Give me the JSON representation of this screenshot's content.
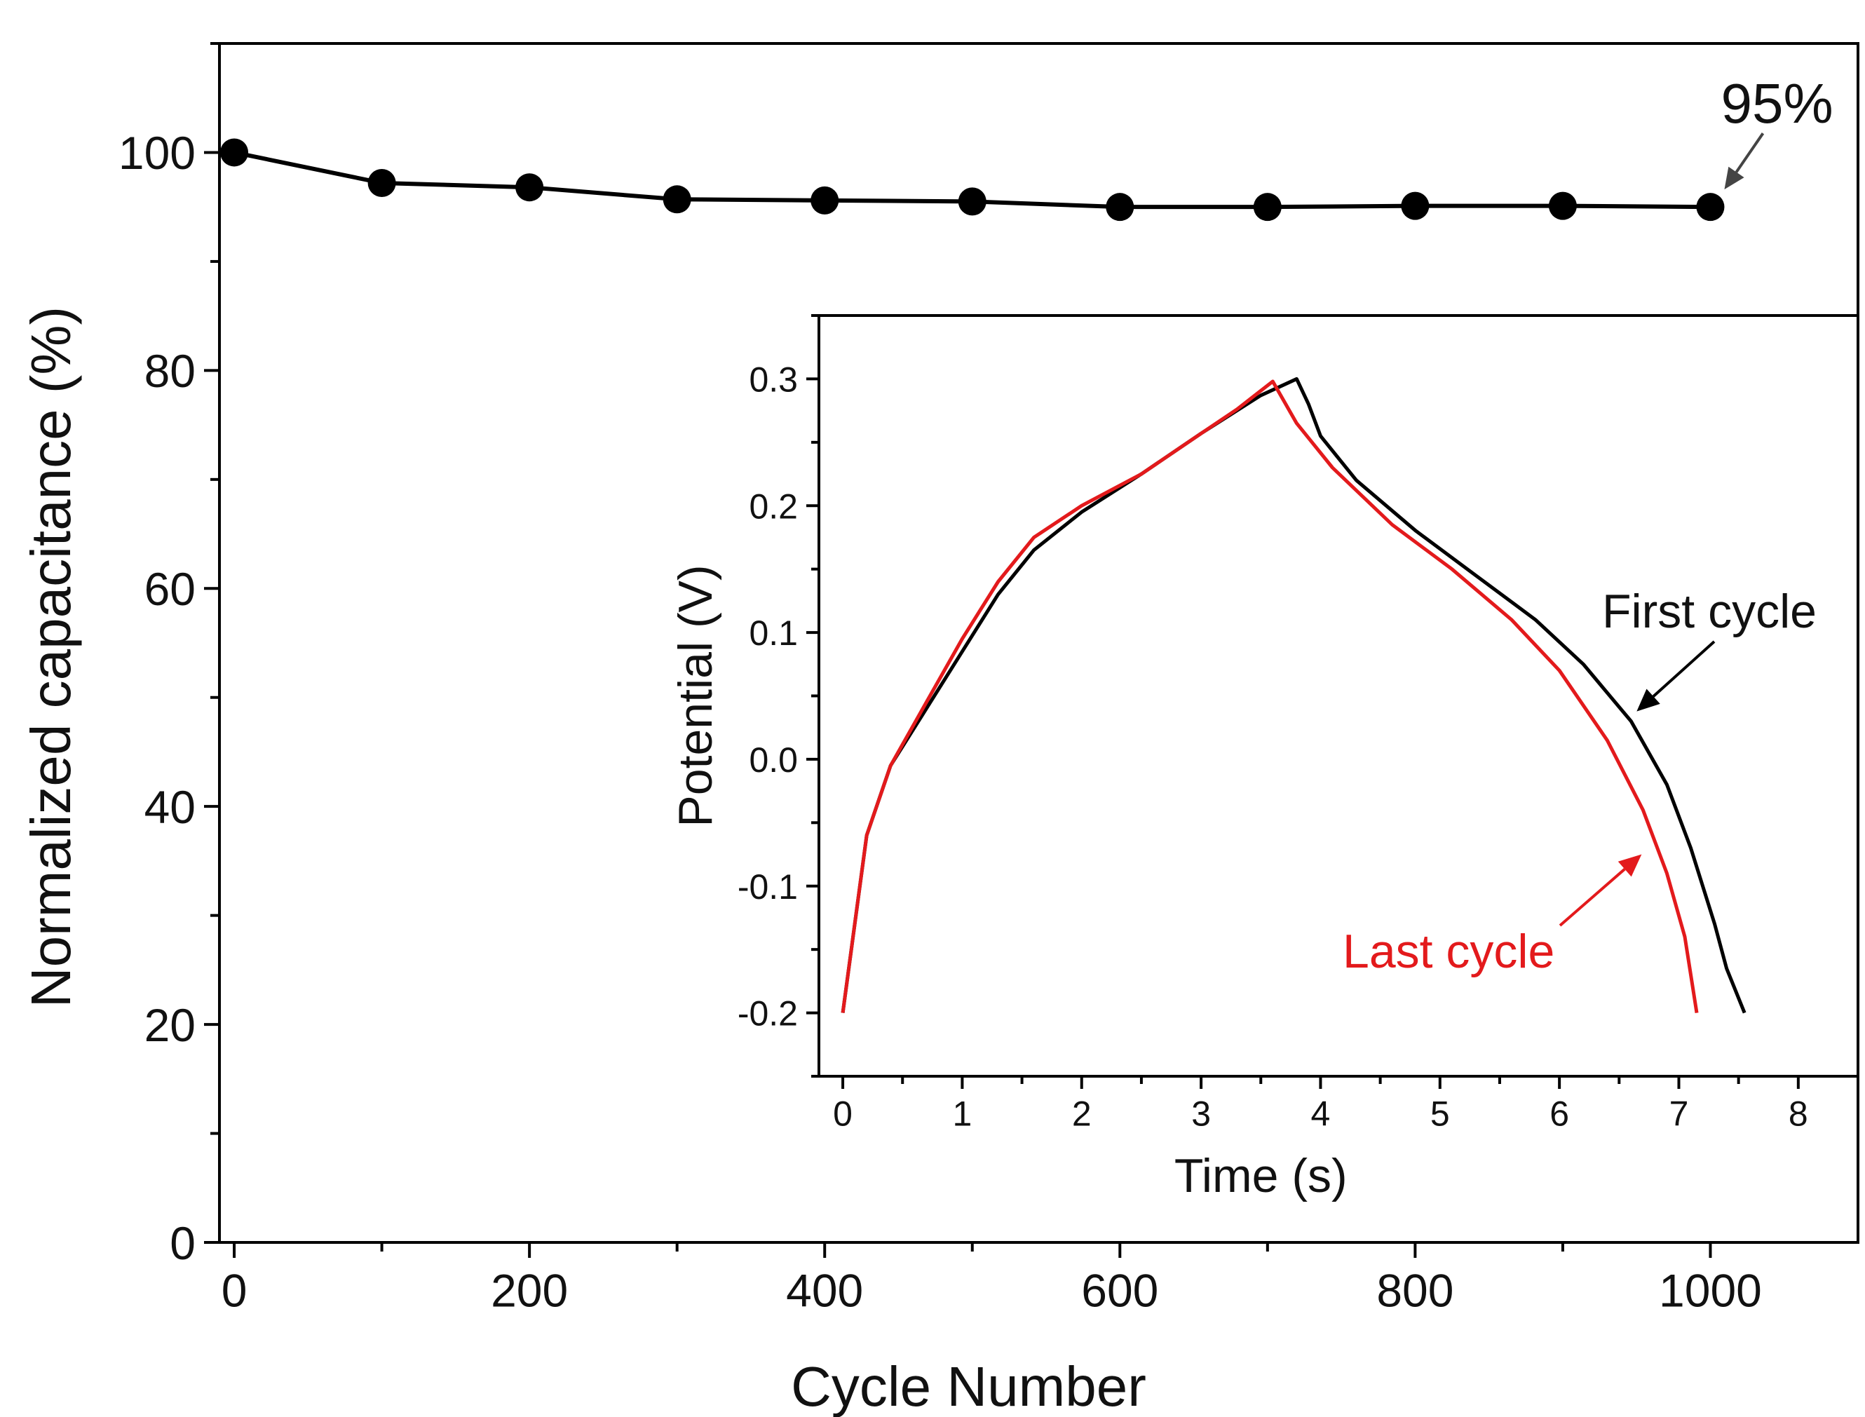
{
  "chart_data": [
    {
      "type": "line",
      "role": "main",
      "xlabel": "Cycle Number",
      "ylabel": "Normalized capacitance (%)",
      "xlim": [
        -10,
        1100
      ],
      "ylim": [
        0,
        110
      ],
      "x_ticks": [
        0,
        200,
        400,
        600,
        800,
        1000
      ],
      "x_tick_labels": [
        "0",
        "200",
        "400",
        "600",
        "800",
        "1000"
      ],
      "y_ticks": [
        0,
        20,
        40,
        60,
        80,
        100
      ],
      "y_tick_labels": [
        "0",
        "20",
        "40",
        "60",
        "80",
        "100"
      ],
      "series": [
        {
          "color": "#000000",
          "marker": "circle",
          "x": [
            0,
            100,
            200,
            300,
            400,
            500,
            600,
            700,
            800,
            900,
            1000
          ],
          "y": [
            100,
            97.2,
            96.8,
            95.7,
            95.6,
            95.5,
            95.0,
            95.0,
            95.1,
            95.1,
            95.0
          ]
        }
      ],
      "annotations": [
        {
          "text": "95%",
          "points_to": {
            "x": 1000,
            "y": 95.0
          }
        }
      ]
    },
    {
      "type": "line",
      "role": "inset",
      "xlabel": "Time (s)",
      "ylabel": "Potential (V)",
      "xlim": [
        -0.2,
        8.5
      ],
      "ylim": [
        -0.25,
        0.35
      ],
      "x_ticks": [
        0,
        1,
        2,
        3,
        4,
        5,
        6,
        7,
        8
      ],
      "x_tick_labels": [
        "0",
        "1",
        "2",
        "3",
        "4",
        "5",
        "6",
        "7",
        "8"
      ],
      "y_ticks": [
        -0.2,
        -0.1,
        0.0,
        0.1,
        0.2,
        0.3
      ],
      "y_tick_labels": [
        "-0.2",
        "-0.1",
        "0.0",
        "0.1",
        "0.2",
        "0.3"
      ],
      "series": [
        {
          "name": "First cycle",
          "color": "#000000",
          "x": [
            0,
            0.2,
            0.4,
            0.7,
            1.0,
            1.3,
            1.6,
            2.0,
            2.5,
            3.0,
            3.5,
            3.8,
            3.9,
            4.0,
            4.3,
            4.8,
            5.3,
            5.8,
            6.2,
            6.6,
            6.9,
            7.1,
            7.3,
            7.4,
            7.55
          ],
          "y": [
            -0.2,
            -0.06,
            -0.005,
            0.04,
            0.085,
            0.13,
            0.165,
            0.195,
            0.225,
            0.257,
            0.287,
            0.3,
            0.28,
            0.255,
            0.22,
            0.18,
            0.145,
            0.11,
            0.075,
            0.03,
            -0.02,
            -0.07,
            -0.13,
            -0.165,
            -0.2
          ]
        },
        {
          "name": "Last cycle",
          "color": "#e31a1c",
          "x": [
            0,
            0.2,
            0.4,
            0.7,
            1.0,
            1.3,
            1.6,
            2.0,
            2.5,
            3.0,
            3.3,
            3.6,
            3.8,
            4.1,
            4.6,
            5.1,
            5.6,
            6.0,
            6.4,
            6.7,
            6.9,
            7.05,
            7.15
          ],
          "y": [
            -0.2,
            -0.06,
            -0.005,
            0.045,
            0.095,
            0.14,
            0.175,
            0.2,
            0.225,
            0.257,
            0.276,
            0.298,
            0.265,
            0.23,
            0.185,
            0.15,
            0.11,
            0.07,
            0.015,
            -0.04,
            -0.09,
            -0.14,
            -0.2
          ]
        }
      ],
      "annotations": [
        {
          "text": "First cycle",
          "color": "#000000"
        },
        {
          "text": "Last cycle",
          "color": "#e31a1c"
        }
      ]
    }
  ]
}
